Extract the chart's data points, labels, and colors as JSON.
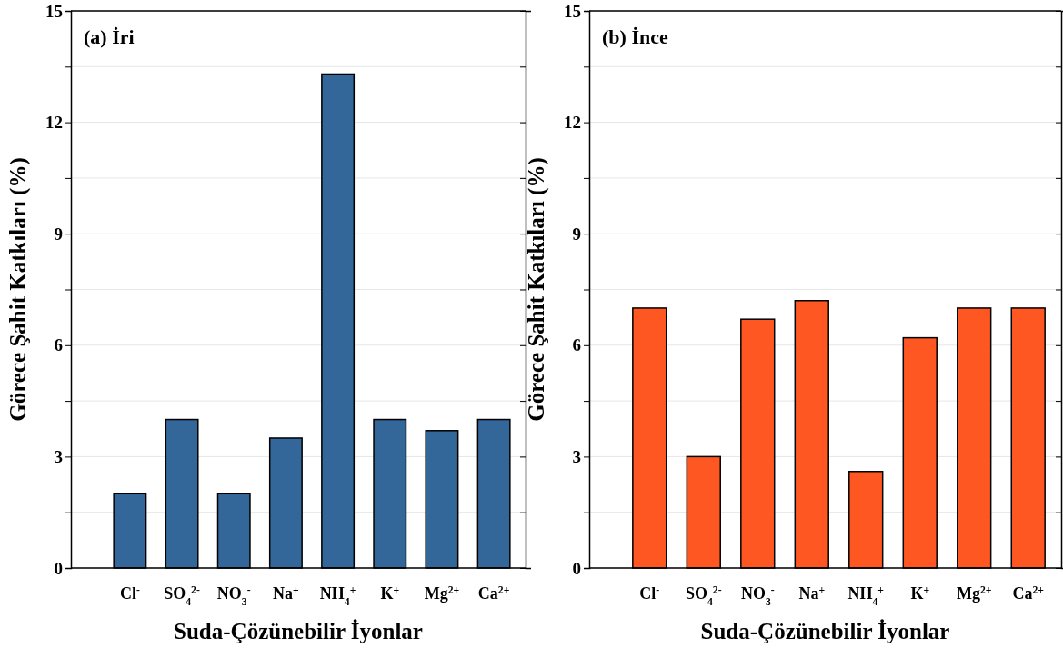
{
  "chart_data": [
    {
      "type": "bar",
      "title": "(a) İri",
      "xlabel": "Suda-Çözünebilir İyonlar",
      "ylabel": "Görece Şahit Katkıları (%)",
      "categories": [
        "Cl$^{-}$",
        "SO$_{4}$$^{2-}$",
        "NO$_{3}$$^{-}$",
        "Na$^{+}$",
        "NH$_{4}$$^{+}$",
        "K$^{+}$",
        "Mg$^{2+}$",
        "Ca$^{2+}$"
      ],
      "values": [
        2.0,
        4.0,
        2.0,
        3.5,
        13.3,
        4.0,
        3.7,
        4.0
      ],
      "color": "#336699",
      "ylim": [
        0,
        15
      ],
      "yticks": [
        0,
        {
          "value": 1.5,
          "label": null
        },
        3,
        {
          "value": 4.5,
          "label": null
        },
        6,
        {
          "value": 7.5,
          "label": null
        },
        9,
        {
          "value": 10.5,
          "label": null
        },
        12,
        {
          "value": 13.5,
          "label": null
        },
        15
      ],
      "grid": "y"
    },
    {
      "type": "bar",
      "title": "(b) İnce",
      "xlabel": "Suda-Çözünebilir İyonlar",
      "ylabel": "Görece Şahit Katkıları (%)",
      "categories": [
        "Cl$^{-}$",
        "SO$_{4}$$^{2-}$",
        "NO$_{3}$$^{-}$",
        "Na$^{+}$",
        "NH$_{4}$$^{+}$",
        "K$^{+}$",
        "Mg$^{2+}$",
        "Ca$^{2+}$"
      ],
      "values": [
        7.0,
        3.0,
        6.7,
        7.2,
        2.6,
        6.2,
        7.0,
        7.0
      ],
      "color": "#ff5722",
      "ylim": [
        0,
        15
      ],
      "yticks": [
        0,
        {
          "value": 1.5,
          "label": null
        },
        3,
        {
          "value": 4.5,
          "label": null
        },
        6,
        {
          "value": 7.5,
          "label": null
        },
        9,
        {
          "value": 10.5,
          "label": null
        },
        12,
        {
          "value": 13.5,
          "label": null
        },
        15
      ],
      "grid": "y"
    }
  ]
}
